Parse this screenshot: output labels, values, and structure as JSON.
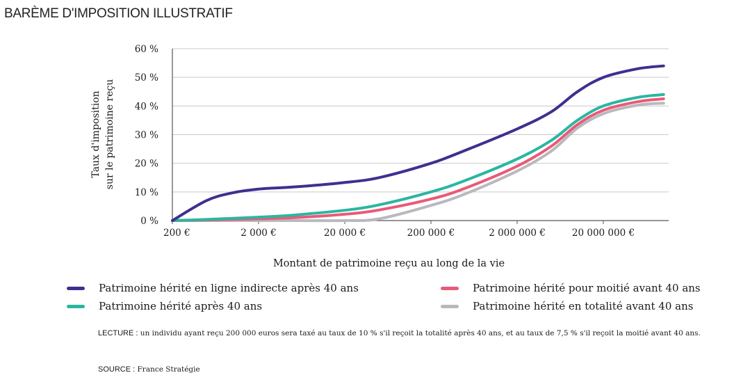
{
  "title": "BARÈME D'IMPOSITION ILLUSTRATIF",
  "chart_data": {
    "type": "line",
    "ylabel_lines": [
      "Taux d'imposition",
      "sur le patrimoine reçu"
    ],
    "xlabel": "Montant de patrimoine reçu au long de la vie",
    "x_scale": "log",
    "x_ticks": [
      "200 €",
      "2 000 €",
      "20 000 €",
      "200 000 €",
      "2 000 000 €",
      "20 000 000 €"
    ],
    "y_ticks": [
      "0 %",
      "10 %",
      "20 %",
      "30 %",
      "40 %",
      "50 %",
      "60 %"
    ],
    "ylim": [
      0,
      60
    ],
    "grid": "horizontal",
    "x": [
      200,
      500,
      1000,
      2000,
      5000,
      20000,
      50000,
      200000,
      500000,
      2000000,
      5000000,
      10000000,
      20000000,
      50000000,
      100000000
    ],
    "series": [
      {
        "name": "Patrimoine hérité en ligne indirecte après 40 ans",
        "color": "#3e3090",
        "values": [
          0,
          7,
          9.7,
          11,
          11.7,
          13.3,
          15,
          20,
          24.5,
          32,
          38,
          45,
          50,
          53,
          54
        ]
      },
      {
        "name": "Patrimoine hérité après 40 ans",
        "color": "#2bb6a1",
        "values": [
          0,
          0.4,
          0.8,
          1.2,
          1.9,
          3.6,
          5.5,
          10,
          14,
          21.5,
          28,
          35,
          40,
          43,
          44
        ]
      },
      {
        "name": "Patrimoine hérité pour moitié avant 40 ans",
        "color": "#e85b78",
        "values": [
          0,
          0.2,
          0.4,
          0.6,
          1,
          2.2,
          3.7,
          7.5,
          11.3,
          19,
          26,
          33.5,
          38.5,
          41.5,
          42.5
        ]
      },
      {
        "name": "Patrimoine hérité en totalité avant 40 ans",
        "color": "#b9b9bd",
        "values": [
          0,
          0,
          0,
          0,
          0,
          0,
          0.6,
          5.3,
          9.3,
          17.3,
          24.3,
          32.3,
          37.3,
          40.3,
          41
        ]
      }
    ],
    "legend_position": "bottom"
  },
  "notes": {
    "lecture_tag": "LECTURE :",
    "lecture_text": " un individu ayant reçu 200 000 euros sera taxé au taux de 10 % s'il reçoit la totalité après 40 ans, et au taux de 7,5 % s'il reçoit la moitié avant 40 ans.",
    "source_tag": "SOURCE :",
    "source_text": " France Stratégie"
  }
}
